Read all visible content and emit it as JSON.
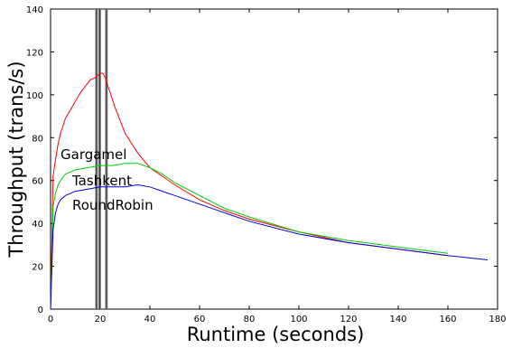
{
  "chart_data": {
    "type": "line",
    "title": "",
    "xlabel": "Runtime (seconds)",
    "ylabel": "Throughput (trans/s)",
    "xlim": [
      0,
      180
    ],
    "ylim": [
      0,
      140
    ],
    "xticks": [
      0,
      20,
      40,
      60,
      80,
      100,
      120,
      140,
      160,
      180
    ],
    "yticks": [
      0,
      20,
      40,
      60,
      80,
      100,
      120,
      140
    ],
    "grid": false,
    "legend": "inline labels",
    "vertical_markers": [
      18.5,
      19.8,
      22.5
    ],
    "series": [
      {
        "name": "Gargamel",
        "color": "#ff0000",
        "x": [
          0,
          1,
          2,
          3,
          4,
          6,
          8,
          10,
          12,
          14,
          16,
          18,
          20,
          21,
          22,
          24,
          26,
          28,
          30,
          35,
          40,
          45,
          50,
          60,
          70,
          80,
          100,
          120,
          140,
          160
        ],
        "y": [
          0,
          62,
          70,
          77,
          82,
          89,
          93,
          97,
          101,
          104,
          107,
          108,
          110,
          110,
          108,
          101,
          94,
          88,
          82,
          73,
          66,
          62,
          58,
          51,
          46,
          42,
          36,
          31,
          28,
          25
        ]
      },
      {
        "name": "Tashkent",
        "color": "#00cc00",
        "x": [
          0,
          1,
          2,
          3,
          4,
          6,
          8,
          10,
          15,
          20,
          25,
          30,
          35,
          40,
          45,
          50,
          60,
          70,
          80,
          100,
          120,
          140,
          160
        ],
        "y": [
          0,
          48,
          54,
          58,
          60,
          63,
          64,
          65,
          66,
          67,
          67,
          68,
          68,
          66,
          63,
          59,
          53,
          47,
          43,
          36,
          32,
          29,
          26
        ]
      },
      {
        "name": "RoundRobin",
        "color": "#0000dd",
        "x": [
          0,
          1,
          2,
          3,
          4,
          6,
          8,
          10,
          15,
          20,
          25,
          30,
          35,
          40,
          45,
          50,
          60,
          70,
          80,
          100,
          120,
          140,
          160,
          176
        ],
        "y": [
          0,
          37,
          45,
          49,
          51,
          53,
          54,
          55,
          56,
          57,
          57,
          57,
          58,
          57,
          55,
          53,
          49,
          45,
          41,
          35,
          31,
          28,
          25,
          23
        ]
      }
    ]
  }
}
